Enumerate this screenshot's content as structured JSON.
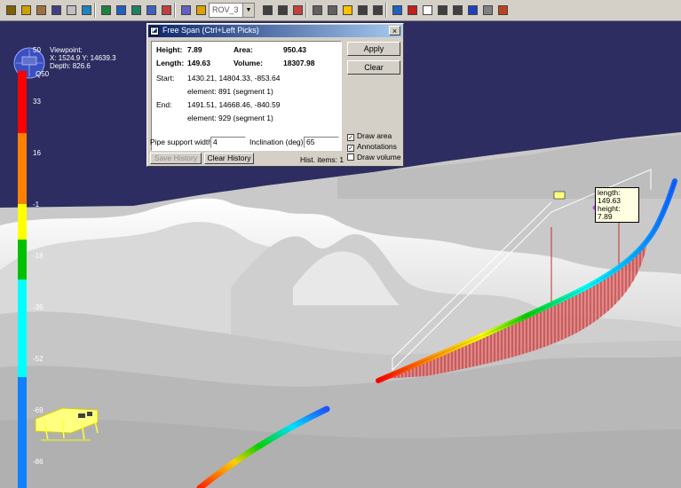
{
  "toolbar": {
    "view_select": "ROV_3",
    "tools": [
      "open-icon",
      "wave-icon",
      "wave-icon",
      "node-icon",
      "export-icon",
      "rotate-icon",
      "pan-icon",
      "axis-icon",
      "axis-icon",
      "move-icon",
      "fly-icon",
      "image-icon",
      "light-icon",
      "back-icon",
      "forward-icon",
      "goto-icon",
      "select-icon",
      "grid-icon",
      "smile-icon",
      "measure-icon",
      "span-icon",
      "palette-icon",
      "box-icon",
      "section-icon",
      "pipe-icon",
      "plus-icon",
      "report-icon",
      "chart-icon",
      "flag-icon"
    ]
  },
  "viewpoint": {
    "title": "Viewpoint:",
    "xy": "X: 1524.9  Y: 14639.3",
    "depth": "Depth: 826.6"
  },
  "compass_label": "Q50",
  "colorbar": {
    "ticks": [
      "50",
      "33",
      "16",
      "-1",
      "-18",
      "-35",
      "-52",
      "-69",
      "-86"
    ],
    "colors": [
      "#ff0000",
      "#ff8000",
      "#ffff00",
      "#00c000",
      "#00ffff",
      "#0080ff",
      "#0040ff"
    ]
  },
  "dialog": {
    "title": "Free Span (Ctrl+Left Picks)",
    "close": "×",
    "height_label": "Height:",
    "height_value": "7.89",
    "area_label": "Area:",
    "area_value": "950.43",
    "length_label": "Length:",
    "length_value": "149.63",
    "volume_label": "Volume:",
    "volume_value": "18307.98",
    "start_label": "Start:",
    "start_coords": "1430.21, 14804.33, -853.64",
    "start_element": "element: 891 (segment 1)",
    "end_label": "End:",
    "end_coords": "1491.51, 14668.46, -840.59",
    "end_element": "element: 929 (segment 1)",
    "apply": "Apply",
    "clear": "Clear",
    "draw_area": "Draw area",
    "annotations": "Annotations",
    "draw_volume": "Draw volume",
    "draw_area_checked": true,
    "annotations_checked": true,
    "draw_volume_checked": false,
    "pipe_support_label": "Pipe support width:",
    "pipe_support_value": "4",
    "inclination_label": "Inclination (deg):",
    "inclination_value": "65",
    "save_history": "Save History",
    "clear_history": "Clear History",
    "hist_items": "Hist. items: 1"
  },
  "annotation": {
    "length": "length: 149.63",
    "height": "height: 7.89"
  },
  "colors": {
    "sky": "#2a2a5e",
    "terrain": "#d8d8d8",
    "span_fill": "#d04040",
    "selection_box": "#ffffff"
  }
}
